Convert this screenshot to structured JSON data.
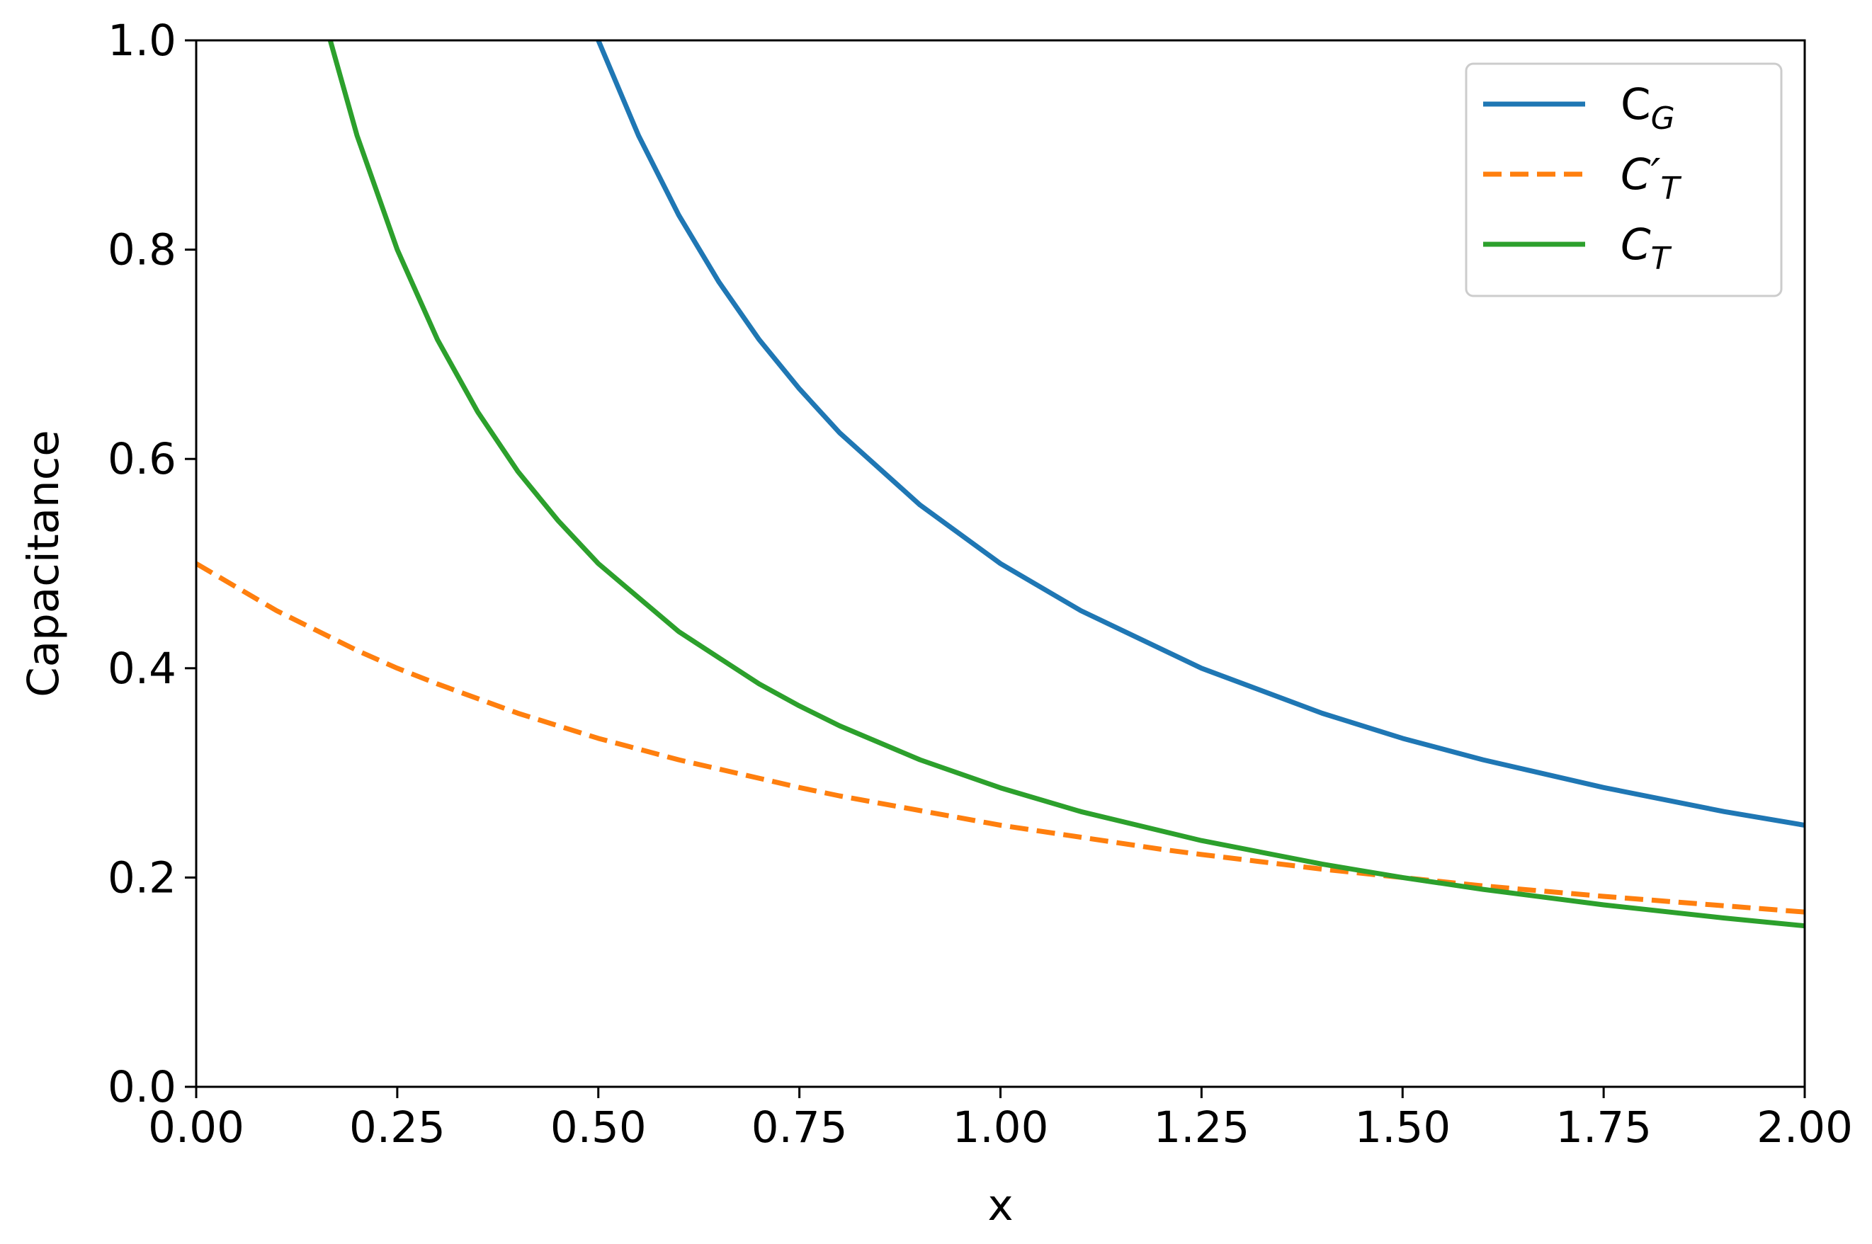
{
  "chart_data": {
    "type": "line",
    "xlabel": "x",
    "ylabel": "Capacitance",
    "xlim": [
      0.0,
      2.0
    ],
    "ylim": [
      0.0,
      1.0
    ],
    "x_ticks": [
      "0.00",
      "0.25",
      "0.50",
      "0.75",
      "1.00",
      "1.25",
      "1.50",
      "1.75",
      "2.00"
    ],
    "y_ticks": [
      "0.0",
      "0.2",
      "0.4",
      "0.6",
      "0.8",
      "1.0"
    ],
    "grid": false,
    "legend_position": "top-right",
    "series": [
      {
        "name": "C_G",
        "legend_main": "C",
        "legend_sub": "G",
        "legend_prime": "",
        "color": "#1f77b4",
        "dash": "solid",
        "x": [
          0.5,
          0.55,
          0.6,
          0.65,
          0.7,
          0.75,
          0.8,
          0.9,
          1.0,
          1.1,
          1.25,
          1.4,
          1.5,
          1.6,
          1.75,
          1.9,
          2.0
        ],
        "y": [
          1.0,
          0.909,
          0.833,
          0.769,
          0.714,
          0.667,
          0.625,
          0.556,
          0.5,
          0.455,
          0.4,
          0.357,
          0.333,
          0.3125,
          0.286,
          0.263,
          0.25
        ]
      },
      {
        "name": "C'_T",
        "legend_main": "C",
        "legend_sub": "T",
        "legend_prime": "′",
        "color": "#ff7f0e",
        "dash": "dashed",
        "x": [
          0.0,
          0.1,
          0.2,
          0.25,
          0.3,
          0.4,
          0.5,
          0.6,
          0.75,
          0.8,
          1.0,
          1.2,
          1.25,
          1.4,
          1.5,
          1.6,
          1.75,
          1.8,
          2.0
        ],
        "y": [
          0.5,
          0.455,
          0.417,
          0.4,
          0.385,
          0.357,
          0.333,
          0.3125,
          0.286,
          0.278,
          0.25,
          0.227,
          0.222,
          0.208,
          0.2,
          0.192,
          0.182,
          0.179,
          0.167
        ]
      },
      {
        "name": "C_T",
        "legend_main": "C",
        "legend_sub": "T",
        "legend_prime": "",
        "color": "#2ca02c",
        "dash": "solid",
        "x": [
          0.1667,
          0.2,
          0.25,
          0.3,
          0.35,
          0.4,
          0.45,
          0.5,
          0.6,
          0.7,
          0.75,
          0.8,
          0.9,
          1.0,
          1.1,
          1.25,
          1.4,
          1.5,
          1.6,
          1.75,
          1.9,
          2.0
        ],
        "y": [
          1.0,
          0.909,
          0.8,
          0.714,
          0.645,
          0.588,
          0.541,
          0.5,
          0.435,
          0.385,
          0.364,
          0.345,
          0.3125,
          0.2857,
          0.263,
          0.2353,
          0.2128,
          0.2,
          0.1887,
          0.1739,
          0.1613,
          0.1538
        ]
      }
    ]
  }
}
